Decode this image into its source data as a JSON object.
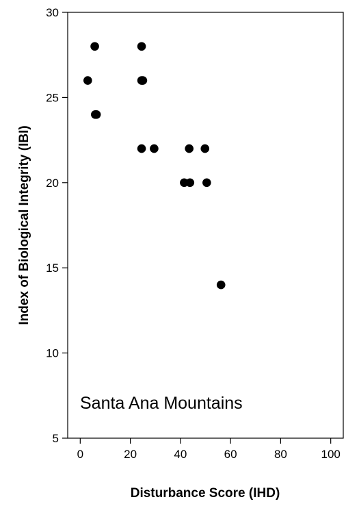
{
  "chart_data": {
    "type": "scatter",
    "title": "",
    "xlabel": "Disturbance Score (IHD)",
    "ylabel": "Index of Biological Integrity (IBI)",
    "annotation": "Santa Ana Mountains",
    "xlim": [
      -5,
      105
    ],
    "ylim": [
      5,
      30
    ],
    "xticks": [
      0,
      20,
      40,
      60,
      80,
      100
    ],
    "yticks": [
      5,
      10,
      15,
      20,
      25,
      30
    ],
    "grid": false,
    "legend": "none",
    "marker_color": "#000000",
    "series": [
      {
        "points": [
          {
            "x": 3,
            "y": 26
          },
          {
            "x": 5.8,
            "y": 28
          },
          {
            "x": 6,
            "y": 24
          },
          {
            "x": 6.5,
            "y": 24
          },
          {
            "x": 24.5,
            "y": 28
          },
          {
            "x": 24.5,
            "y": 26
          },
          {
            "x": 25,
            "y": 26
          },
          {
            "x": 24.5,
            "y": 22
          },
          {
            "x": 29.5,
            "y": 22
          },
          {
            "x": 41.5,
            "y": 20
          },
          {
            "x": 43.5,
            "y": 22
          },
          {
            "x": 43.8,
            "y": 20
          },
          {
            "x": 49.8,
            "y": 22
          },
          {
            "x": 50.5,
            "y": 20
          },
          {
            "x": 56.2,
            "y": 14
          }
        ]
      }
    ]
  }
}
